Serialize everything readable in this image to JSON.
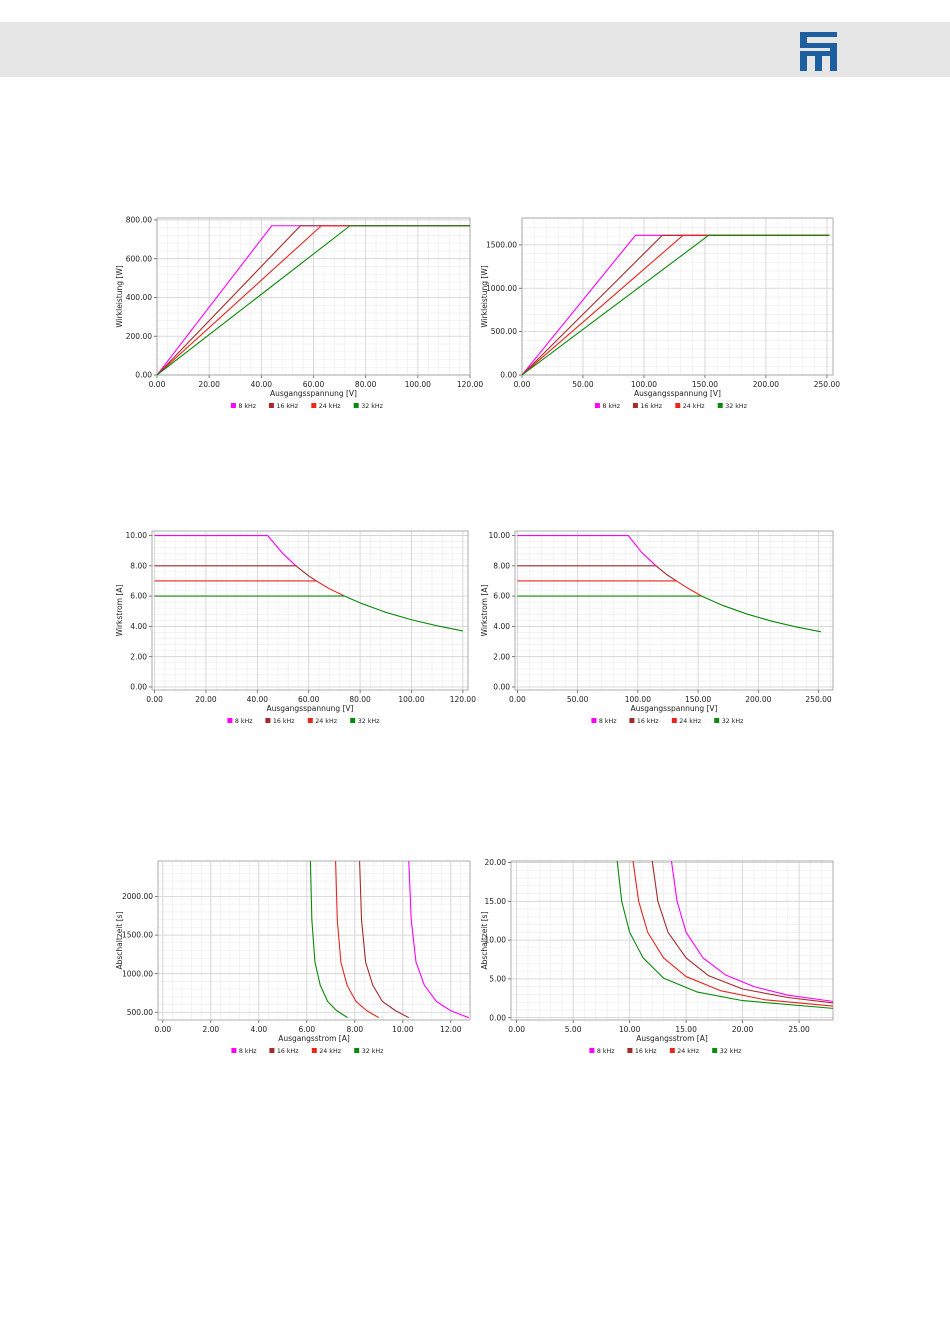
{
  "header": {
    "logo_icon": "sieb-meyer-logo-icon",
    "bar_color": "#e6e6e6",
    "logo_color": "#1c5e9e"
  },
  "legend": {
    "entries": [
      {
        "label": "8 kHz",
        "color": "#ff00ff"
      },
      {
        "label": "16 kHz",
        "color": "#a52a2a"
      },
      {
        "label": "24 kHz",
        "color": "#e8251f"
      },
      {
        "label": "32 kHz",
        "color": "#0a8a0a"
      }
    ]
  },
  "chart_data": [
    {
      "type": "line",
      "xlabel": "Ausgangsspannung [V]",
      "ylabel": "Wirkleistung [W]",
      "xlim": [
        0,
        120
      ],
      "ylim": [
        0,
        810
      ],
      "x_ticks": [
        0,
        20,
        40,
        60,
        80,
        100,
        120
      ],
      "x_tick_labels": [
        "0.00",
        "20.00",
        "40.00",
        "60.00",
        "80.00",
        "100.00",
        "120.00"
      ],
      "y_ticks": [
        0,
        200,
        400,
        600,
        800
      ],
      "y_tick_labels": [
        "0.00",
        "200.00",
        "400.00",
        "600.00",
        "800.00"
      ],
      "grid": true,
      "legend_position": "bottom",
      "series": [
        {
          "name": "8 kHz",
          "points": [
            [
              0,
              0
            ],
            [
              44,
              770
            ],
            [
              120,
              770
            ]
          ]
        },
        {
          "name": "16 kHz",
          "points": [
            [
              0,
              0
            ],
            [
              55,
              770
            ],
            [
              120,
              770
            ]
          ]
        },
        {
          "name": "24 kHz",
          "points": [
            [
              0,
              0
            ],
            [
              63,
              770
            ],
            [
              120,
              770
            ]
          ]
        },
        {
          "name": "32 kHz",
          "points": [
            [
              0,
              0
            ],
            [
              74,
              770
            ],
            [
              120,
              770
            ]
          ]
        }
      ]
    },
    {
      "type": "line",
      "xlabel": "Ausgangsspannung [V]",
      "ylabel": "Wirkleistung [W]",
      "xlim": [
        0,
        255
      ],
      "ylim": [
        0,
        1810
      ],
      "x_ticks": [
        0,
        50,
        100,
        150,
        200,
        250
      ],
      "x_tick_labels": [
        "0.00",
        "50.00",
        "100.00",
        "150.00",
        "200.00",
        "250.00"
      ],
      "y_ticks": [
        0,
        500,
        1000,
        1500
      ],
      "y_tick_labels": [
        "0.00",
        "500.00",
        "1000.00",
        "1500.00"
      ],
      "grid": true,
      "legend_position": "bottom",
      "series": [
        {
          "name": "8 kHz",
          "points": [
            [
              0,
              0
            ],
            [
              93,
              1610
            ],
            [
              252,
              1610
            ]
          ]
        },
        {
          "name": "16 kHz",
          "points": [
            [
              0,
              0
            ],
            [
              115,
              1610
            ],
            [
              252,
              1610
            ]
          ]
        },
        {
          "name": "24 kHz",
          "points": [
            [
              0,
              0
            ],
            [
              132,
              1610
            ],
            [
              252,
              1610
            ]
          ]
        },
        {
          "name": "32 kHz",
          "points": [
            [
              0,
              0
            ],
            [
              153,
              1610
            ],
            [
              252,
              1610
            ]
          ]
        }
      ]
    },
    {
      "type": "line",
      "xlabel": "Ausgangsspannung [V]",
      "ylabel": "Wirkstrom [A]",
      "xlim": [
        -1,
        122
      ],
      "ylim": [
        -0.2,
        10.3
      ],
      "x_ticks": [
        0,
        20,
        40,
        60,
        80,
        100,
        120
      ],
      "x_tick_labels": [
        "0.00",
        "20.00",
        "40.00",
        "60.00",
        "80.00",
        "100.00",
        "120.00"
      ],
      "y_ticks": [
        0,
        2,
        4,
        6,
        8,
        10
      ],
      "y_tick_labels": [
        "0.00",
        "2.00",
        "4.00",
        "6.00",
        "8.00",
        "10.00"
      ],
      "grid": true,
      "legend_position": "bottom",
      "series": [
        {
          "name": "8 kHz",
          "points": [
            [
              0,
              10
            ],
            [
              44,
              10
            ],
            [
              50,
              8.8
            ],
            [
              55,
              8.0
            ]
          ]
        },
        {
          "name": "16 kHz",
          "points": [
            [
              0,
              8
            ],
            [
              55,
              8
            ],
            [
              60,
              7.33
            ],
            [
              63,
              7.0
            ]
          ]
        },
        {
          "name": "24 kHz",
          "points": [
            [
              0,
              7
            ],
            [
              63,
              7
            ],
            [
              68,
              6.49
            ],
            [
              74,
              6.0
            ]
          ]
        },
        {
          "name": "32 kHz",
          "points": [
            [
              0,
              6
            ],
            [
              74,
              6
            ],
            [
              80,
              5.55
            ],
            [
              90,
              4.93
            ],
            [
              100,
              4.44
            ],
            [
              110,
              4.04
            ],
            [
              120,
              3.7
            ]
          ]
        }
      ]
    },
    {
      "type": "line",
      "xlabel": "Ausgangsspannung [V]",
      "ylabel": "Wirkstrom [A]",
      "xlim": [
        -2,
        262
      ],
      "ylim": [
        -0.2,
        10.3
      ],
      "x_ticks": [
        0,
        50,
        100,
        150,
        200,
        250
      ],
      "x_tick_labels": [
        "0.00",
        "50.00",
        "100.00",
        "150.00",
        "200.00",
        "250.00"
      ],
      "y_ticks": [
        0,
        2,
        4,
        6,
        8,
        10
      ],
      "y_tick_labels": [
        "0.00",
        "2.00",
        "4.00",
        "6.00",
        "8.00",
        "10.00"
      ],
      "grid": true,
      "legend_position": "bottom",
      "series": [
        {
          "name": "8 kHz",
          "points": [
            [
              0,
              10
            ],
            [
              92,
              10
            ],
            [
              103,
              8.9
            ],
            [
              115,
              8.0
            ]
          ]
        },
        {
          "name": "16 kHz",
          "points": [
            [
              0,
              8
            ],
            [
              115,
              8
            ],
            [
              124,
              7.42
            ],
            [
              132,
              7.0
            ]
          ]
        },
        {
          "name": "24 kHz",
          "points": [
            [
              0,
              7
            ],
            [
              132,
              7
            ],
            [
              142,
              6.5
            ],
            [
              153,
              6.0
            ]
          ]
        },
        {
          "name": "32 kHz",
          "points": [
            [
              0,
              6
            ],
            [
              153,
              6
            ],
            [
              170,
              5.4
            ],
            [
              190,
              4.83
            ],
            [
              210,
              4.37
            ],
            [
              230,
              3.99
            ],
            [
              252,
              3.64
            ]
          ]
        }
      ]
    },
    {
      "type": "line",
      "xlabel": "Ausgangsstrom [A]",
      "ylabel": "Abschaltzeit [s]",
      "xlim": [
        -0.2,
        12.8
      ],
      "ylim": [
        400,
        2460
      ],
      "x_ticks": [
        0,
        2,
        4,
        6,
        8,
        10,
        12
      ],
      "x_tick_labels": [
        "0.00",
        "2.00",
        "4.00",
        "6.00",
        "8.00",
        "10.00",
        "12.00"
      ],
      "y_ticks": [
        500,
        1000,
        1500,
        2000
      ],
      "y_tick_labels": [
        "500.00",
        "1000.00",
        "1500.00",
        "2000.00"
      ],
      "grid": true,
      "legend_position": "bottom",
      "series": [
        {
          "name": "8 kHz",
          "points": [
            [
              10.25,
              2460
            ],
            [
              10.35,
              1700
            ],
            [
              10.55,
              1150
            ],
            [
              10.9,
              850
            ],
            [
              11.4,
              640
            ],
            [
              12.0,
              520
            ],
            [
              12.75,
              430
            ]
          ]
        },
        {
          "name": "16 kHz",
          "points": [
            [
              8.2,
              2460
            ],
            [
              8.28,
              1700
            ],
            [
              8.45,
              1150
            ],
            [
              8.75,
              850
            ],
            [
              9.15,
              640
            ],
            [
              9.7,
              520
            ],
            [
              10.25,
              430
            ]
          ]
        },
        {
          "name": "24 kHz",
          "points": [
            [
              7.2,
              2460
            ],
            [
              7.27,
              1700
            ],
            [
              7.42,
              1150
            ],
            [
              7.68,
              850
            ],
            [
              8.05,
              640
            ],
            [
              8.5,
              520
            ],
            [
              9.0,
              430
            ]
          ]
        },
        {
          "name": "32 kHz",
          "points": [
            [
              6.15,
              2460
            ],
            [
              6.21,
              1700
            ],
            [
              6.34,
              1150
            ],
            [
              6.56,
              850
            ],
            [
              6.87,
              640
            ],
            [
              7.25,
              520
            ],
            [
              7.7,
              430
            ]
          ]
        }
      ]
    },
    {
      "type": "line",
      "xlabel": "Ausgangsstrom [A]",
      "ylabel": "Abschaltzeit [s]",
      "xlim": [
        -0.5,
        28
      ],
      "ylim": [
        -0.3,
        20.2
      ],
      "x_ticks": [
        0,
        5,
        10,
        15,
        20,
        25
      ],
      "x_tick_labels": [
        "0.00",
        "5.00",
        "10.00",
        "15.00",
        "20.00",
        "25.00"
      ],
      "y_ticks": [
        0,
        5,
        10,
        15,
        20
      ],
      "y_tick_labels": [
        "0.00",
        "5.00",
        "10.00",
        "15.00",
        "20.00"
      ],
      "grid": true,
      "legend_position": "bottom",
      "series": [
        {
          "name": "8 kHz",
          "points": [
            [
              13.7,
              20.2
            ],
            [
              14.2,
              15.0
            ],
            [
              15.0,
              11.0
            ],
            [
              16.5,
              7.7
            ],
            [
              18.5,
              5.5
            ],
            [
              21.0,
              4.0
            ],
            [
              24.0,
              2.9
            ],
            [
              28.0,
              2.1
            ]
          ]
        },
        {
          "name": "16 kHz",
          "points": [
            [
              12.0,
              20.2
            ],
            [
              12.5,
              15.0
            ],
            [
              13.4,
              11.0
            ],
            [
              15.0,
              7.7
            ],
            [
              17.0,
              5.4
            ],
            [
              20.0,
              3.7
            ],
            [
              24.0,
              2.6
            ],
            [
              28.0,
              1.9
            ]
          ]
        },
        {
          "name": "24 kHz",
          "points": [
            [
              10.3,
              20.2
            ],
            [
              10.8,
              15.0
            ],
            [
              11.6,
              11.0
            ],
            [
              13.0,
              7.7
            ],
            [
              15.0,
              5.3
            ],
            [
              18.0,
              3.5
            ],
            [
              22.0,
              2.3
            ],
            [
              28.0,
              1.5
            ]
          ]
        },
        {
          "name": "32 kHz",
          "points": [
            [
              8.9,
              20.2
            ],
            [
              9.3,
              15.0
            ],
            [
              10.0,
              11.0
            ],
            [
              11.2,
              7.7
            ],
            [
              13.0,
              5.1
            ],
            [
              16.0,
              3.3
            ],
            [
              20.0,
              2.2
            ],
            [
              28.0,
              1.2
            ]
          ]
        }
      ]
    }
  ]
}
